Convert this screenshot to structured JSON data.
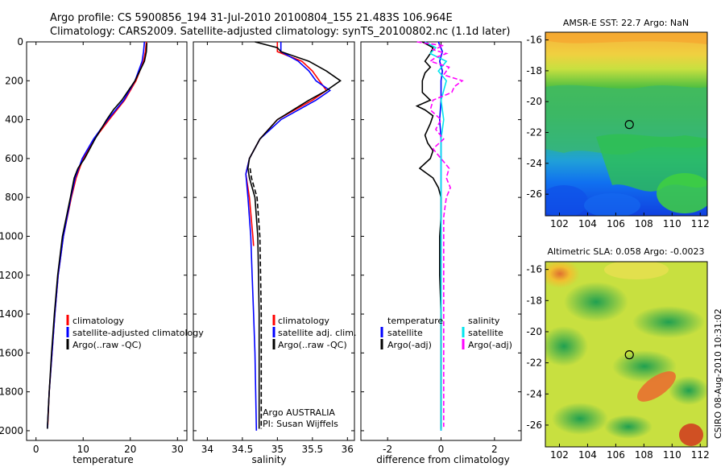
{
  "header": {
    "title_line1": "Argo profile: CS 5900856_194 31-Jul-2010 20100804_155 21.483S 106.964E",
    "title_line2": "Climatology: CARS2009. Satellite-adjusted climatology: synTS_20100802.nc (1.1d later)"
  },
  "side_label": "CSIRO 08-Aug-2010 10:31:02",
  "colors": {
    "climatology": "#ff0000",
    "satellite": "#0000ff",
    "argo": "#000000",
    "satellite_diff": "#00e5ee",
    "argo_adj": "#ff00ff"
  },
  "chart_data": [
    {
      "type": "line",
      "id": "temperature",
      "xlabel": "temperature",
      "xlim": [
        -2,
        32
      ],
      "ylim": [
        2050,
        0
      ],
      "xticks": [
        0,
        10,
        20,
        30
      ],
      "yticks": [
        0,
        200,
        400,
        600,
        800,
        1000,
        1200,
        1400,
        1600,
        1800,
        2000
      ],
      "legend": [
        "climatology",
        "satellite-adjusted climatology",
        "Argo(..raw -QC)"
      ],
      "series": [
        {
          "name": "climatology",
          "color": "#ff0000",
          "depth": [
            0,
            50,
            100,
            200,
            300,
            400,
            500,
            600,
            700,
            800,
            1000,
            1200,
            1400,
            1600,
            1800,
            1970
          ],
          "values": [
            23.4,
            23.2,
            22.8,
            21.2,
            18.8,
            15.5,
            12.4,
            10.0,
            8.5,
            7.5,
            5.8,
            4.7,
            4.0,
            3.4,
            2.8,
            2.5
          ]
        },
        {
          "name": "satellite-adjusted climatology",
          "color": "#0000ff",
          "depth": [
            0,
            50,
            100,
            200,
            300,
            400,
            500,
            600,
            700,
            800,
            1000,
            1200,
            1400,
            1600,
            1800,
            1990
          ],
          "values": [
            23.0,
            22.8,
            22.5,
            21.0,
            18.6,
            15.2,
            12.2,
            9.8,
            8.3,
            7.4,
            5.8,
            4.7,
            4.0,
            3.4,
            2.8,
            2.4
          ]
        },
        {
          "name": "Argo(..raw -QC)",
          "color": "#000000",
          "depth": [
            5,
            50,
            100,
            200,
            300,
            350,
            400,
            500,
            600,
            650,
            700,
            800,
            1000,
            1200,
            1400,
            1600,
            1800,
            1990
          ],
          "values": [
            23.5,
            23.4,
            23.0,
            21.0,
            18.2,
            16.4,
            15.0,
            12.5,
            10.3,
            8.9,
            8.1,
            7.3,
            5.6,
            4.6,
            3.9,
            3.3,
            2.8,
            2.4
          ]
        }
      ]
    },
    {
      "type": "line",
      "id": "salinity",
      "xlabel": "salinity",
      "xlim": [
        33.8,
        36.1
      ],
      "ylim": [
        2050,
        0
      ],
      "xticks": [
        34,
        34.5,
        35,
        35.5,
        36
      ],
      "xticklabels": [
        "34",
        "34.5",
        "35",
        "35.5",
        "36"
      ],
      "legend": [
        "climatology",
        "satellite adj. clim.",
        "Argo(..raw -QC)"
      ],
      "annotation": [
        "Argo AUSTRALIA",
        "PI: Susan Wijffels"
      ],
      "series": [
        {
          "name": "climatology",
          "color": "#ff0000",
          "depth": [
            0,
            50,
            100,
            150,
            200,
            250,
            300,
            400,
            500,
            600,
            680,
            800,
            1000,
            1050
          ],
          "values": [
            35.0,
            35.0,
            35.35,
            35.5,
            35.6,
            35.7,
            35.5,
            35.0,
            34.75,
            34.6,
            34.55,
            34.6,
            34.65,
            34.66
          ]
        },
        {
          "name": "satellite adj. clim.",
          "color": "#0000ff",
          "depth": [
            0,
            50,
            100,
            150,
            200,
            250,
            300,
            400,
            500,
            600,
            680,
            800,
            1000,
            1200,
            1400,
            1600,
            1800,
            2000
          ],
          "values": [
            35.05,
            35.05,
            35.3,
            35.45,
            35.55,
            35.75,
            35.55,
            35.05,
            34.75,
            34.6,
            34.55,
            34.58,
            34.62,
            34.64,
            34.66,
            34.68,
            34.69,
            34.7
          ]
        },
        {
          "name": "Argo(..raw -QC)",
          "color": "#000000",
          "depth": [
            0,
            30,
            50,
            100,
            150,
            200,
            250,
            300,
            400,
            500,
            600,
            650,
            700,
            800,
            1000,
            1200,
            1400,
            1600,
            1800,
            1990
          ],
          "values": [
            34.68,
            35.0,
            35.05,
            35.45,
            35.7,
            35.9,
            35.7,
            35.45,
            35.0,
            34.75,
            34.6,
            34.58,
            34.6,
            34.68,
            34.72,
            34.73,
            34.74,
            34.74,
            34.74,
            34.74
          ]
        }
      ]
    },
    {
      "type": "line",
      "id": "difference",
      "xlabel": "difference from climatology",
      "xlim": [
        -3,
        3
      ],
      "ylim": [
        2050,
        0
      ],
      "xticks": [
        -2,
        0,
        2
      ],
      "legend_temperature": {
        "title": "temperature",
        "items": [
          "satellite",
          "Argo(-adj)"
        ]
      },
      "legend_salinity": {
        "title": "salinity",
        "items": [
          "satellite",
          "Argo(-adj)"
        ]
      },
      "series": [
        {
          "name": "temperature satellite",
          "color": "#0000ff",
          "depth": [
            0,
            50,
            100,
            150,
            200,
            300,
            400,
            500,
            600,
            700,
            800,
            1000,
            1200,
            1400,
            1600,
            1800,
            2000
          ],
          "values": [
            -0.1,
            0.05,
            -0.05,
            0.05,
            0.0,
            0.0,
            -0.05,
            0.0,
            0.0,
            0.0,
            0.0,
            0.0,
            0.0,
            0.0,
            0.0,
            0.0,
            0.0
          ]
        },
        {
          "name": "temperature Argo(-adj)",
          "color": "#000000",
          "depth": [
            0,
            30,
            60,
            100,
            130,
            160,
            200,
            260,
            300,
            330,
            350,
            380,
            420,
            480,
            520,
            560,
            600,
            650,
            700,
            750,
            800,
            900,
            1000,
            1200,
            1400,
            1600,
            1800,
            1990
          ],
          "values": [
            -0.7,
            -0.3,
            -0.4,
            -0.6,
            -0.4,
            -0.6,
            -0.7,
            -0.7,
            -0.4,
            -0.9,
            -0.6,
            -0.3,
            -0.4,
            -0.6,
            -0.5,
            -0.3,
            -0.4,
            -0.8,
            -0.3,
            -0.1,
            0.0,
            0.0,
            -0.05,
            -0.05,
            0.0,
            0.0,
            0.0,
            0.0
          ]
        },
        {
          "name": "salinity satellite",
          "color": "#00e5ee",
          "depth": [
            0,
            30,
            60,
            100,
            150,
            200,
            300,
            400,
            500,
            600,
            700,
            800,
            1000,
            1200,
            1400,
            1600,
            1800,
            2000
          ],
          "values": [
            -0.6,
            -0.2,
            -0.4,
            0.2,
            -0.1,
            0.2,
            0.0,
            0.1,
            0.0,
            0.0,
            0.0,
            0.0,
            0.0,
            0.0,
            0.0,
            0.0,
            0.0,
            0.0
          ]
        },
        {
          "name": "salinity Argo(-adj)",
          "color": "#ff00ff",
          "depth": [
            0,
            20,
            40,
            60,
            80,
            100,
            130,
            170,
            200,
            230,
            260,
            300,
            350,
            400,
            450,
            500,
            550,
            600,
            650,
            700,
            750,
            800,
            900,
            1000,
            1200,
            1400,
            1600,
            1800,
            1980
          ],
          "values": [
            -0.9,
            0.1,
            -0.3,
            0.2,
            -0.2,
            -0.4,
            0.3,
            0.1,
            0.8,
            0.5,
            0.4,
            -0.3,
            -0.4,
            0.0,
            -0.2,
            0.1,
            -0.3,
            0.0,
            0.3,
            0.2,
            0.35,
            0.2,
            0.1,
            0.1,
            0.1,
            0.1,
            0.1,
            0.1,
            0.1
          ]
        }
      ]
    },
    {
      "type": "heatmap",
      "id": "sst_map",
      "title": "AMSR-E SST: 22.7  Argo: NaN",
      "xlim": [
        101,
        112.5
      ],
      "ylim": [
        -27.4,
        -15.5
      ],
      "xticks": [
        102,
        104,
        106,
        108,
        110,
        112
      ],
      "yticks": [
        -16,
        -18,
        -20,
        -22,
        -24,
        -26
      ],
      "marker": {
        "lon": 106.964,
        "lat": -21.483
      }
    },
    {
      "type": "heatmap",
      "id": "sla_map",
      "title": "Altimetric SLA: 0.058  Argo: -0.0023",
      "xlim": [
        101,
        112.5
      ],
      "ylim": [
        -27.4,
        -15.5
      ],
      "xticks": [
        102,
        104,
        106,
        108,
        110,
        112
      ],
      "yticks": [
        -16,
        -18,
        -20,
        -22,
        -24,
        -26
      ],
      "marker": {
        "lon": 106.964,
        "lat": -21.483
      }
    }
  ]
}
